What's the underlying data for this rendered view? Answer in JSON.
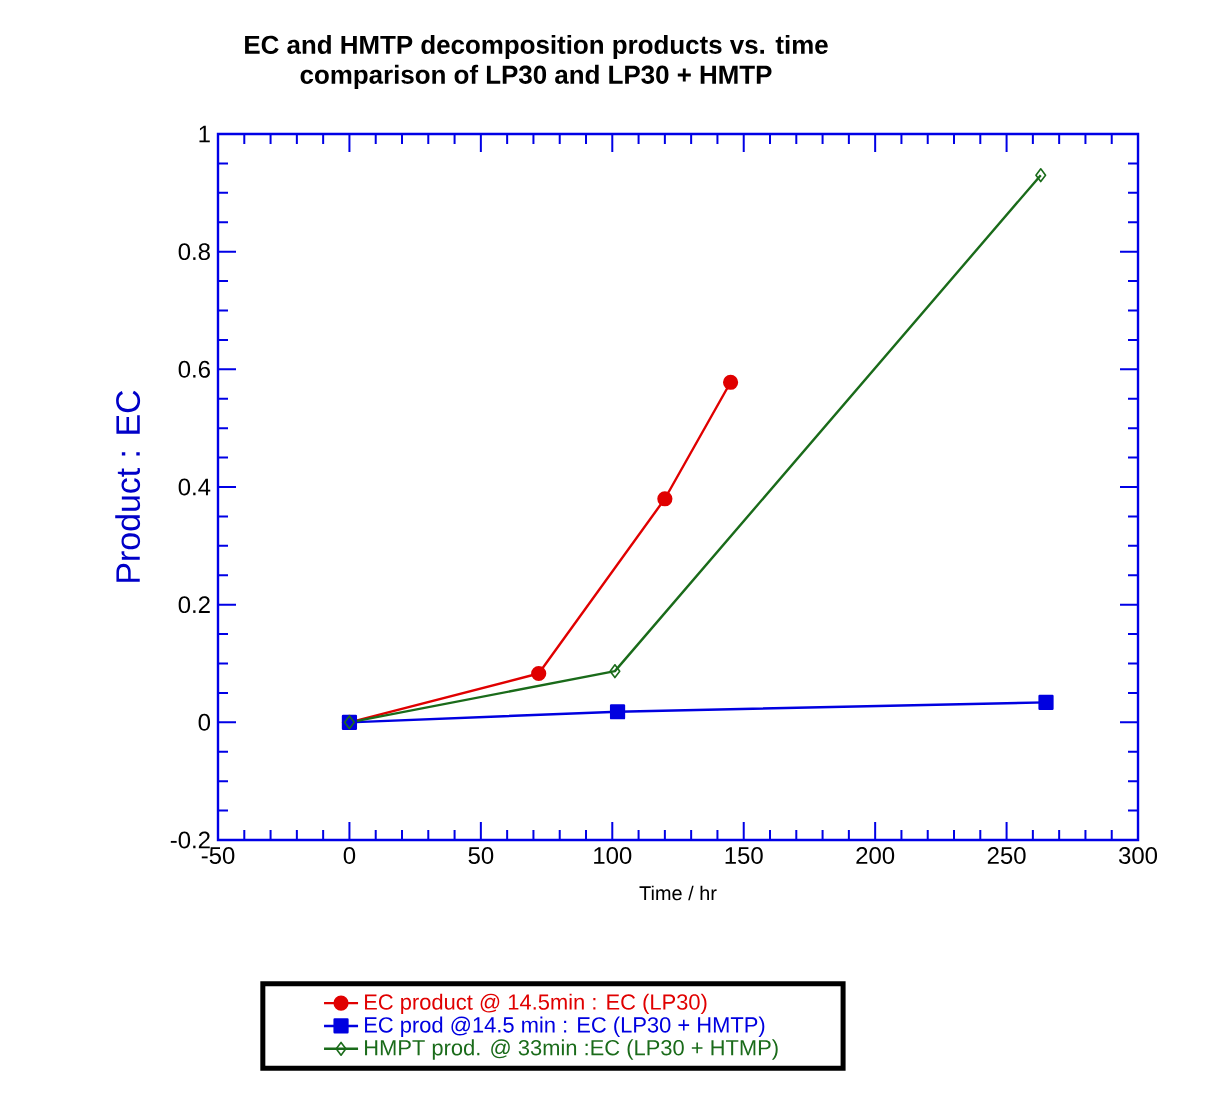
{
  "chart_data": {
    "type": "line",
    "title": "EC and HMTP decomposition products vs. time",
    "subtitle": "comparison of LP30 and LP30 + HMTP",
    "xlabel": "Time / hr",
    "ylabel": "Product : EC",
    "series": [
      {
        "name": "EC product @ 14.5min : EC  (LP30)",
        "color": "#e00000",
        "marker": "circle",
        "x": [
          0,
          72,
          120,
          145
        ],
        "values": [
          0,
          0.083,
          0.38,
          0.578
        ]
      },
      {
        "name": "EC prod @14.5 min : EC (LP30 + HMTP)",
        "color": "#0000e0",
        "marker": "square",
        "x": [
          0,
          102,
          265
        ],
        "values": [
          0,
          0.018,
          0.034
        ]
      },
      {
        "name": "HMPT prod. @ 33min :EC (LP30 + HTMP)",
        "color": "#1a6b1a",
        "marker": "diamond",
        "x": [
          0,
          101,
          263
        ],
        "values": [
          0,
          0.087,
          0.93
        ]
      }
    ],
    "xlim": [
      -50,
      300
    ],
    "xticks": [
      -50,
      0,
      50,
      100,
      150,
      200,
      250,
      300
    ],
    "ylim": [
      -0.2,
      1
    ],
    "yticks": [
      -0.2,
      0,
      0.2,
      0.4,
      0.6,
      0.8,
      1
    ],
    "grid": false,
    "legend": "bottom",
    "line_style": "solid"
  }
}
